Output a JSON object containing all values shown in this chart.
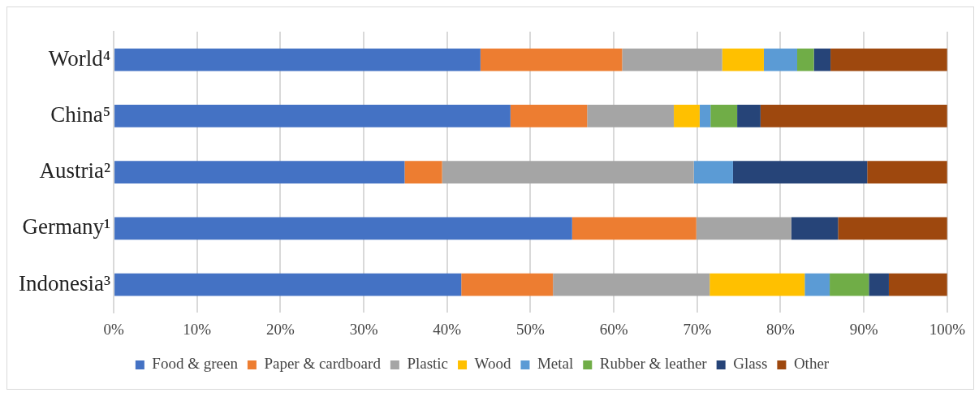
{
  "chart_data": {
    "type": "bar",
    "orientation": "horizontal",
    "stacked": true,
    "categories": [
      "World⁴",
      "China⁵",
      "Austria²",
      "Germany¹",
      "Indonesia³"
    ],
    "series": [
      {
        "name": "Food & green",
        "color": "#4472c4",
        "values": [
          44,
          47.6,
          34.9,
          55,
          41.7
        ]
      },
      {
        "name": "Paper & cardboard",
        "color": "#ed7d31",
        "values": [
          17,
          9.2,
          4.5,
          14.9,
          11
        ]
      },
      {
        "name": "Plastic",
        "color": "#a5a5a5",
        "values": [
          12,
          10.4,
          30.2,
          11.4,
          18.8
        ]
      },
      {
        "name": "Wood",
        "color": "#ffc000",
        "values": [
          5,
          3.1,
          0,
          0,
          11.4
        ]
      },
      {
        "name": "Metal",
        "color": "#5b9bd5",
        "values": [
          4,
          1.3,
          4.7,
          0,
          3
        ]
      },
      {
        "name": "Rubber & leather",
        "color": "#70ad47",
        "values": [
          2,
          3.2,
          0,
          0,
          4.7
        ]
      },
      {
        "name": "Glass",
        "color": "#264478",
        "values": [
          2,
          2.8,
          16.1,
          5.6,
          2.4
        ]
      },
      {
        "name": "Other",
        "color": "#9e480e",
        "values": [
          14,
          22.4,
          9.6,
          13.1,
          7
        ]
      }
    ],
    "xlim": [
      0,
      100
    ],
    "xticks": [
      {
        "value": 0,
        "label": "0%"
      },
      {
        "value": 10,
        "label": "10%"
      },
      {
        "value": 20,
        "label": "20%"
      },
      {
        "value": 30,
        "label": "30%"
      },
      {
        "value": 40,
        "label": "40%"
      },
      {
        "value": 50,
        "label": "50%"
      },
      {
        "value": 60,
        "label": "60%"
      },
      {
        "value": 70,
        "label": "70%"
      },
      {
        "value": 80,
        "label": "80%"
      },
      {
        "value": 90,
        "label": "90%"
      },
      {
        "value": 100,
        "label": "100%"
      }
    ],
    "grid": "x",
    "legend": "bottom"
  }
}
